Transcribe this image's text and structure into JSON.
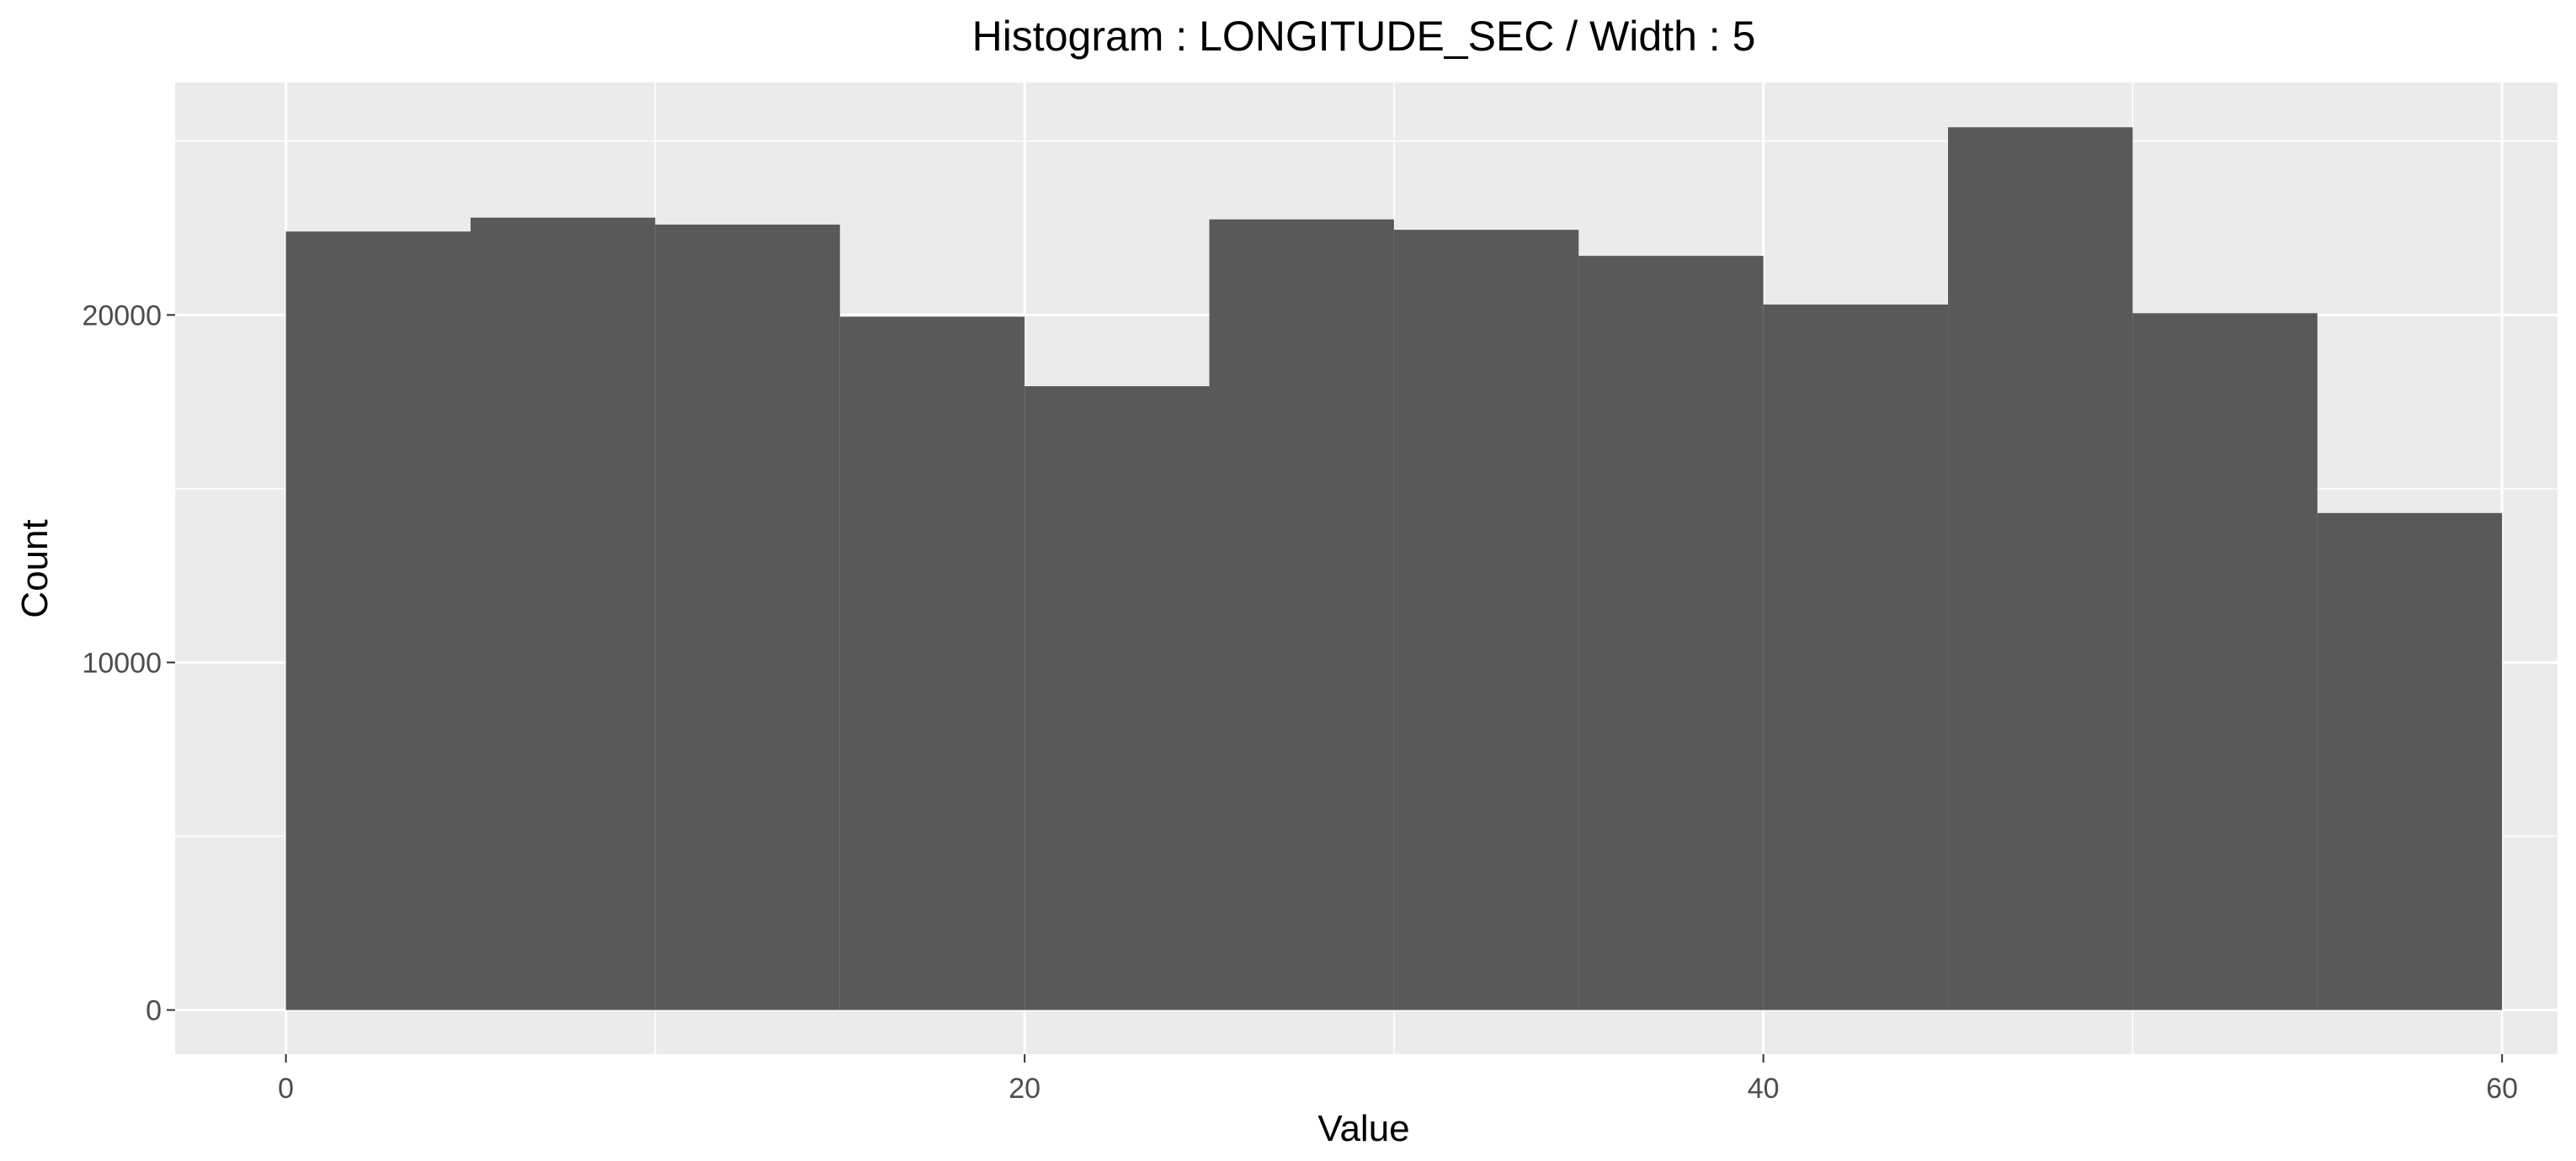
{
  "chart_data": {
    "type": "histogram",
    "title": "Histogram : LONGITUDE_SEC / Width : 5",
    "xlabel": "Value",
    "ylabel": "Count",
    "bin_width": 5,
    "bins": [
      {
        "x0": 0,
        "x1": 5,
        "count": 22400
      },
      {
        "x0": 5,
        "x1": 10,
        "count": 22800
      },
      {
        "x0": 10,
        "x1": 15,
        "count": 22600
      },
      {
        "x0": 15,
        "x1": 20,
        "count": 19950
      },
      {
        "x0": 20,
        "x1": 25,
        "count": 17950
      },
      {
        "x0": 25,
        "x1": 30,
        "count": 22750
      },
      {
        "x0": 30,
        "x1": 35,
        "count": 22450
      },
      {
        "x0": 35,
        "x1": 40,
        "count": 21700
      },
      {
        "x0": 40,
        "x1": 45,
        "count": 20300
      },
      {
        "x0": 45,
        "x1": 50,
        "count": 25400
      },
      {
        "x0": 50,
        "x1": 55,
        "count": 20050
      },
      {
        "x0": 55,
        "x1": 60,
        "count": 14300
      }
    ],
    "xlim": [
      -3,
      61.5
    ],
    "ylim": [
      -1270,
      26690
    ],
    "x_ticks": [
      0,
      20,
      40,
      60
    ],
    "x_tick_labels": [
      "0",
      "20",
      "40",
      "60"
    ],
    "x_minor_ticks": [
      10,
      30,
      50
    ],
    "y_ticks": [
      0,
      10000,
      20000
    ],
    "y_tick_labels": [
      "0",
      "10000",
      "20000"
    ],
    "y_minor_ticks": [
      5000,
      15000,
      25000
    ],
    "grid": true,
    "legend": "none",
    "colors": {
      "panel_background": "#ebebeb",
      "grid_line": "#ffffff",
      "bar_fill": "#595959",
      "tick_mark": "#333333",
      "tick_label": "#4d4d4d",
      "text": "#000000"
    }
  }
}
